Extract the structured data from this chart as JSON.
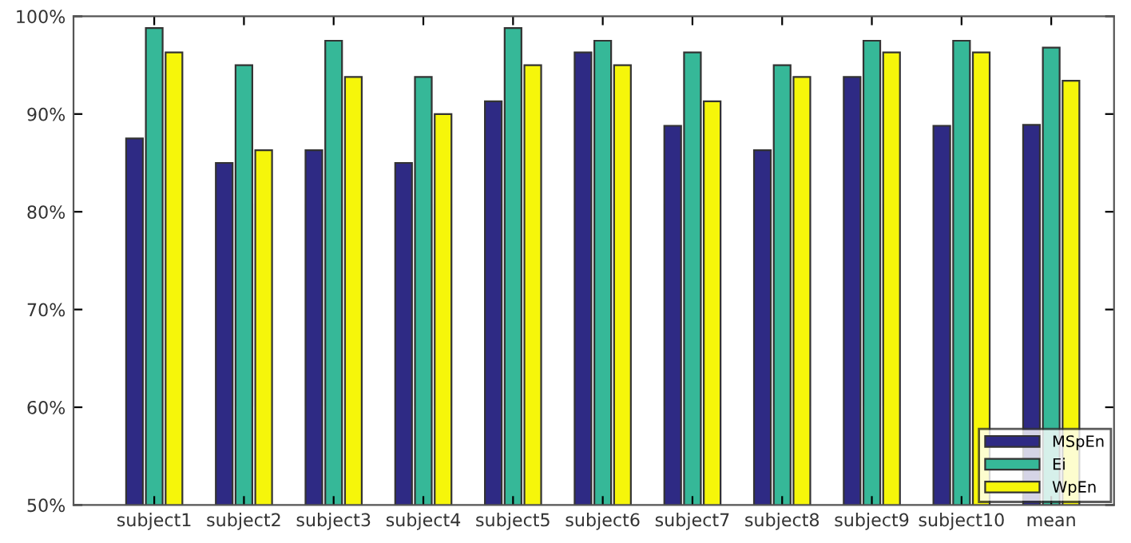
{
  "chart_data": {
    "type": "bar",
    "categories": [
      "subject1",
      "subject2",
      "subject3",
      "subject4",
      "subject5",
      "subject6",
      "subject7",
      "subject8",
      "subject9",
      "subject10",
      "mean"
    ],
    "series": [
      {
        "name": "MSpEn",
        "color": "#2e2a84",
        "values": [
          87.5,
          85,
          86.3,
          85,
          91.3,
          96.3,
          88.8,
          86.3,
          93.8,
          88.8,
          88.9
        ]
      },
      {
        "name": "Ei",
        "color": "#36b898",
        "values": [
          98.8,
          95,
          97.5,
          93.8,
          98.8,
          97.5,
          96.3,
          95,
          97.5,
          97.5,
          96.8
        ]
      },
      {
        "name": "WpEn",
        "color": "#f6f60a",
        "values": [
          96.3,
          86.3,
          93.8,
          90,
          95,
          95,
          91.3,
          93.8,
          96.3,
          96.3,
          93.4
        ]
      }
    ],
    "ylim": [
      50,
      100
    ],
    "yticks": [
      {
        "value": 50,
        "label": "50%"
      },
      {
        "value": 60,
        "label": "60%"
      },
      {
        "value": 70,
        "label": "70%"
      },
      {
        "value": 80,
        "label": "80%"
      },
      {
        "value": 90,
        "label": "90%"
      },
      {
        "value": 100,
        "label": "100%"
      }
    ],
    "legend": "bottom right",
    "grid": false
  }
}
